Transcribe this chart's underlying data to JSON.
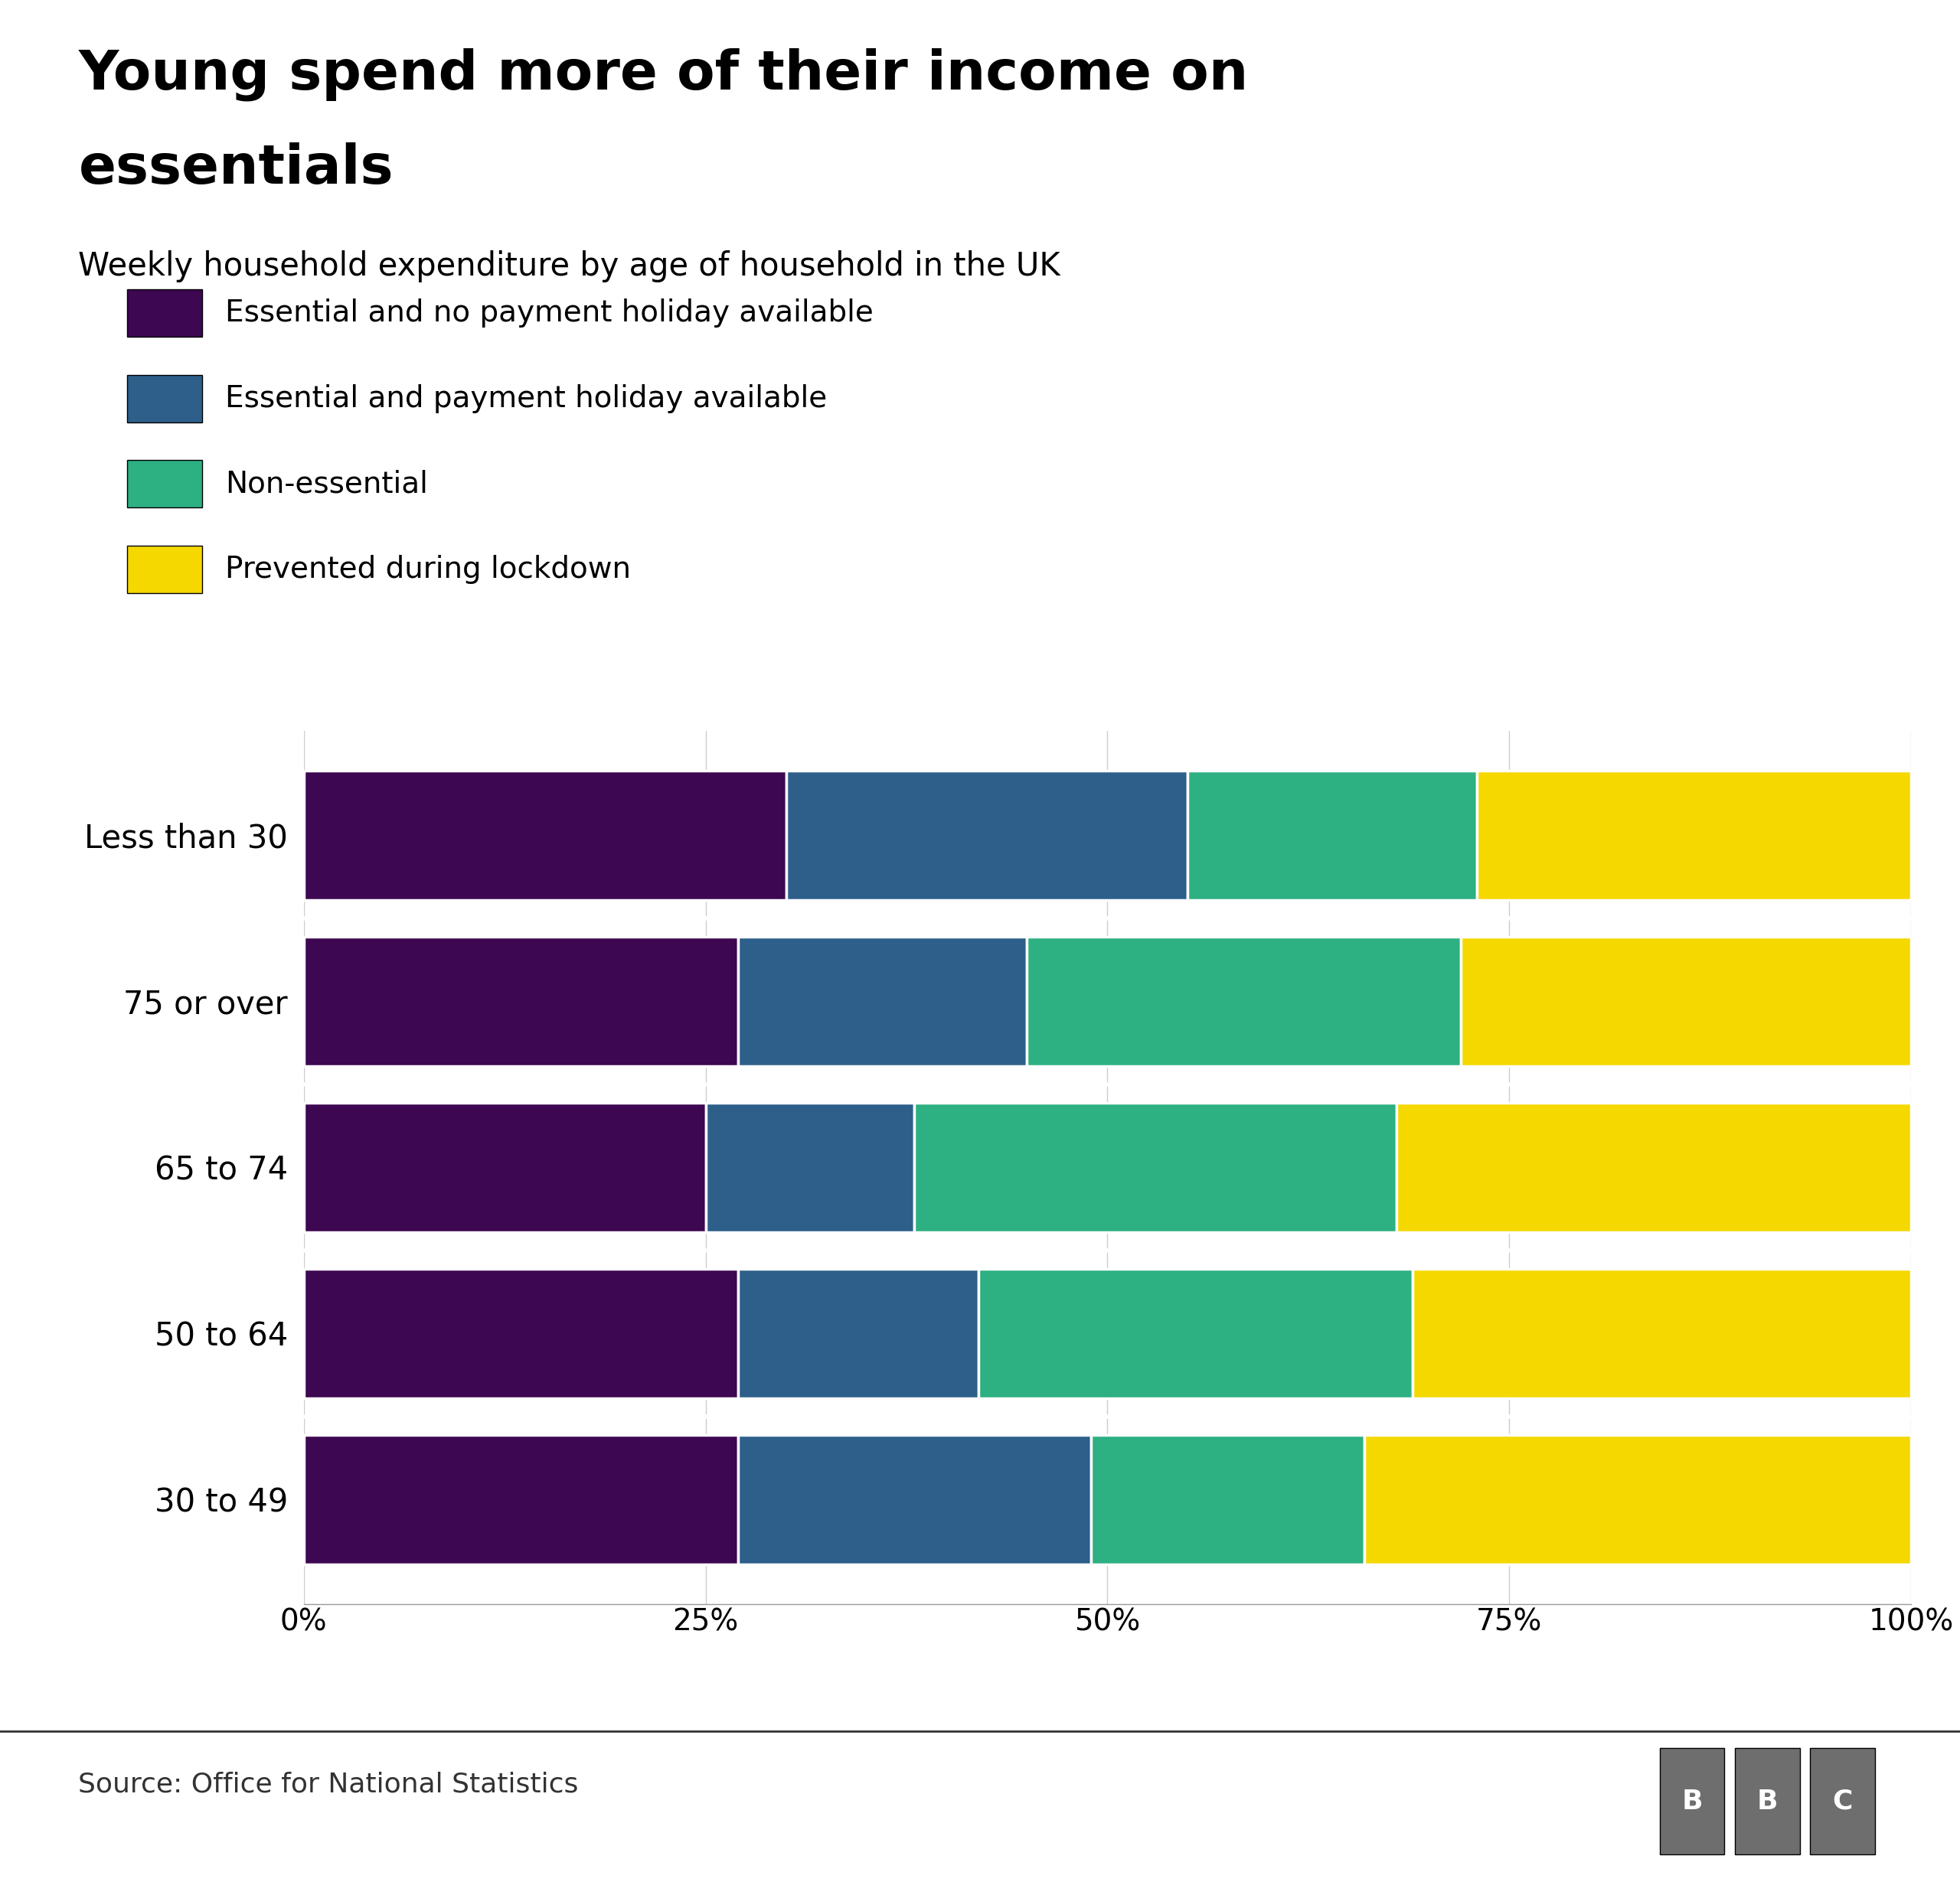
{
  "title_line1": "Young spend more of their income on",
  "title_line2": "essentials",
  "subtitle": "Weekly household expenditure by age of household in the UK",
  "categories": [
    "Less than 30",
    "75 or over",
    "65 to 74",
    "50 to 64",
    "30 to 49"
  ],
  "series": [
    {
      "label": "Essential and no payment holiday available",
      "color": "#3d0751",
      "values": [
        30,
        27,
        25,
        27,
        27
      ]
    },
    {
      "label": "Essential and payment holiday available",
      "color": "#2d5f8a",
      "values": [
        25,
        18,
        13,
        15,
        22
      ]
    },
    {
      "label": "Non-essential",
      "color": "#2db082",
      "values": [
        18,
        27,
        30,
        27,
        17
      ]
    },
    {
      "label": "Prevented during lockdown",
      "color": "#f5d800",
      "values": [
        27,
        28,
        32,
        31,
        34
      ]
    }
  ],
  "xlim": [
    0,
    100
  ],
  "xticks": [
    0,
    25,
    50,
    75,
    100
  ],
  "xticklabels": [
    "0%",
    "25%",
    "50%",
    "75%",
    "100%"
  ],
  "source": "Source: Office for National Statistics",
  "background_color": "#ffffff",
  "bar_height": 0.78,
  "title_fontsize": 52,
  "subtitle_fontsize": 30,
  "legend_fontsize": 28,
  "tick_fontsize": 28,
  "ytick_fontsize": 30,
  "source_fontsize": 26,
  "bbc_color": "#6e6e6e"
}
